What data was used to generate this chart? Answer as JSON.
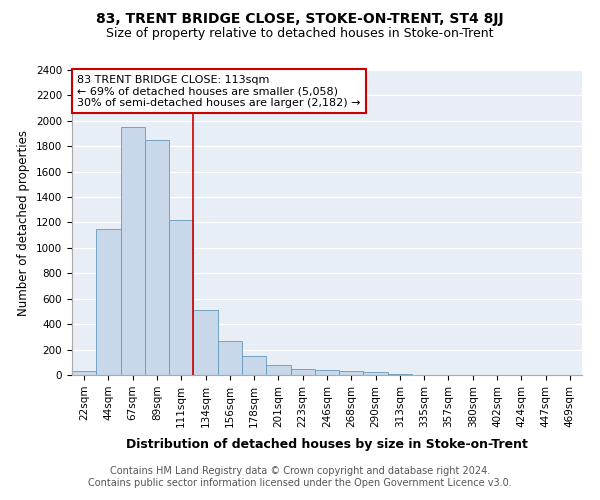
{
  "title": "83, TRENT BRIDGE CLOSE, STOKE-ON-TRENT, ST4 8JJ",
  "subtitle": "Size of property relative to detached houses in Stoke-on-Trent",
  "xlabel": "Distribution of detached houses by size in Stoke-on-Trent",
  "ylabel": "Number of detached properties",
  "footer_line1": "Contains HM Land Registry data © Crown copyright and database right 2024.",
  "footer_line2": "Contains public sector information licensed under the Open Government Licence v3.0.",
  "annotation_line1": "83 TRENT BRIDGE CLOSE: 113sqm",
  "annotation_line2": "← 69% of detached houses are smaller (5,058)",
  "annotation_line3": "30% of semi-detached houses are larger (2,182) →",
  "bar_color": "#c8d8ea",
  "bar_edge_color": "#6699bb",
  "vline_color": "#cc0000",
  "categories": [
    "22sqm",
    "44sqm",
    "67sqm",
    "89sqm",
    "111sqm",
    "134sqm",
    "156sqm",
    "178sqm",
    "201sqm",
    "223sqm",
    "246sqm",
    "268sqm",
    "290sqm",
    "313sqm",
    "335sqm",
    "357sqm",
    "380sqm",
    "402sqm",
    "424sqm",
    "447sqm",
    "469sqm"
  ],
  "values": [
    30,
    1150,
    1950,
    1850,
    1220,
    510,
    270,
    150,
    80,
    50,
    40,
    35,
    20,
    8,
    3,
    3,
    2,
    1,
    1,
    1,
    1
  ],
  "vline_x": 4.5,
  "ylim": [
    0,
    2400
  ],
  "yticks": [
    0,
    200,
    400,
    600,
    800,
    1000,
    1200,
    1400,
    1600,
    1800,
    2000,
    2200,
    2400
  ],
  "plot_bg_color": "#e8eef5",
  "title_fontsize": 10,
  "subtitle_fontsize": 9,
  "xlabel_fontsize": 9,
  "ylabel_fontsize": 8.5,
  "tick_fontsize": 7.5,
  "annotation_fontsize": 8,
  "footer_fontsize": 7
}
